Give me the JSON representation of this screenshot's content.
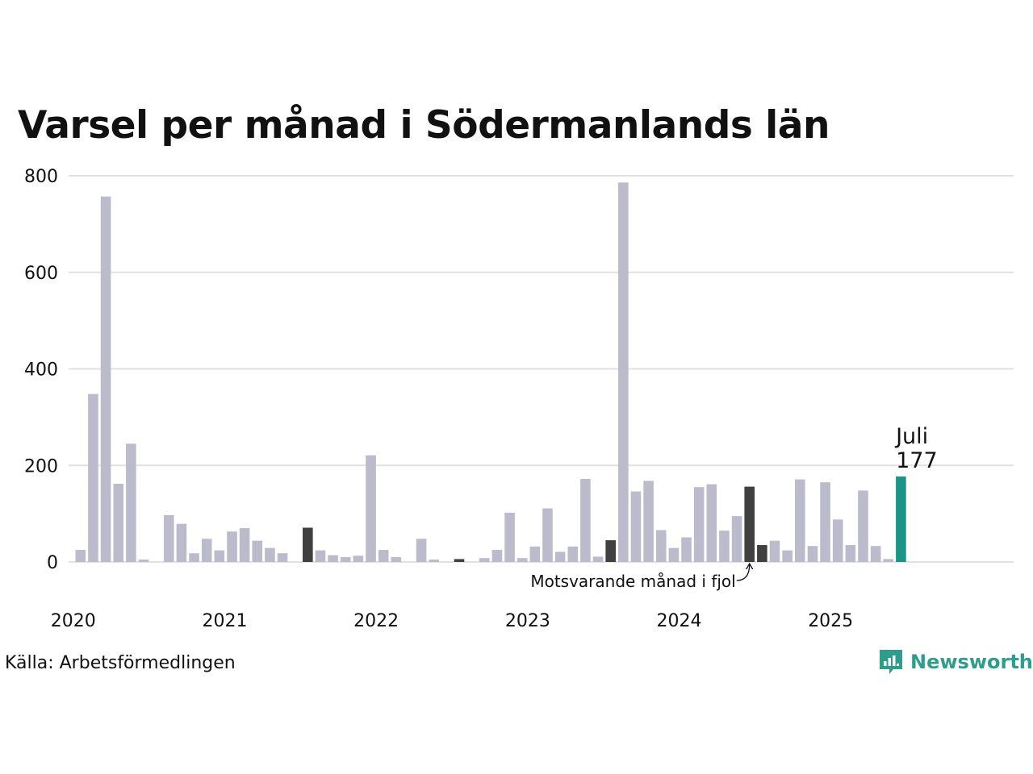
{
  "chart_data": {
    "type": "bar",
    "title": "Varsel per månad i Södermanlands län",
    "ylim": [
      0,
      800
    ],
    "y_ticks": [
      "0",
      "200",
      "400",
      "600",
      "800"
    ],
    "x_ticks": [
      "2020",
      "2021",
      "2022",
      "2023",
      "2024",
      "2025"
    ],
    "grid": true,
    "series": [
      {
        "values": [
          25,
          348,
          757,
          162,
          245,
          5,
          0,
          97,
          79,
          18,
          48,
          24,
          63,
          70,
          44,
          29,
          18,
          0,
          71,
          24,
          14,
          10,
          13,
          221,
          25,
          10,
          0,
          48,
          5,
          0,
          6,
          0,
          8,
          25,
          102,
          8,
          32,
          111,
          21,
          32,
          172,
          11,
          45,
          786,
          146,
          168,
          66,
          29,
          51,
          155,
          161,
          65,
          95,
          156,
          35,
          44,
          24,
          171,
          33,
          165,
          88,
          35,
          148,
          33,
          6,
          177
        ],
        "colors": {
          "default": "#bcbbcb",
          "previous_year": "#404040",
          "current": "#1b9488"
        }
      }
    ],
    "highlight": {
      "current_month_label": "Juli",
      "current_value_label": "177",
      "previous_year_note": "Motsvarande månad i fjol"
    }
  },
  "footer": {
    "source": "Källa: Arbetsförmedlingen",
    "brand": "Newsworthy",
    "brand_icon": "bar-chart-speech-icon",
    "brand_color": "#2f9d8c"
  }
}
